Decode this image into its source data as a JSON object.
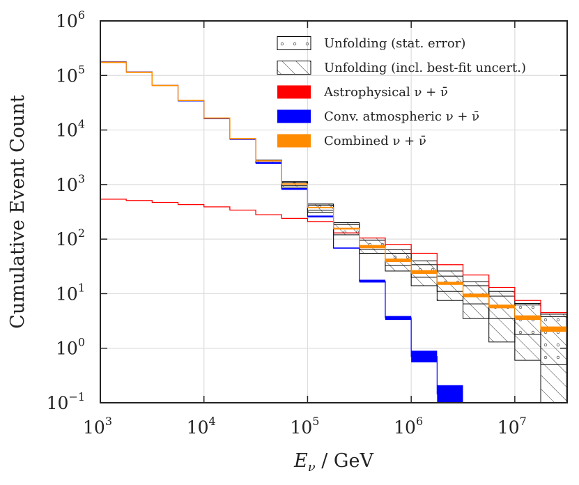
{
  "chart_data": {
    "type": "step",
    "xlabel": "E_ν / GeV",
    "ylabel": "Cumulative Event Count",
    "xscale": "log",
    "yscale": "log",
    "xlim": [
      1000,
      32000000
    ],
    "ylim": [
      0.1,
      1000000
    ],
    "grid": true,
    "x_ticks": [
      {
        "base": "10",
        "exp": "3",
        "value": 1000
      },
      {
        "base": "10",
        "exp": "4",
        "value": 10000
      },
      {
        "base": "10",
        "exp": "5",
        "value": 100000
      },
      {
        "base": "10",
        "exp": "6",
        "value": 1000000
      },
      {
        "base": "10",
        "exp": "7",
        "value": 10000000
      }
    ],
    "y_ticks": [
      {
        "base": "10",
        "exp": "−1",
        "value": 0.1
      },
      {
        "base": "10",
        "exp": "0",
        "value": 1
      },
      {
        "base": "10",
        "exp": "1",
        "value": 10
      },
      {
        "base": "10",
        "exp": "2",
        "value": 100
      },
      {
        "base": "10",
        "exp": "3",
        "value": 1000
      },
      {
        "base": "10",
        "exp": "4",
        "value": 10000
      },
      {
        "base": "10",
        "exp": "5",
        "value": 100000
      },
      {
        "base": "10",
        "exp": "6",
        "value": 1000000
      }
    ],
    "bin_edges": [
      1000,
      1778,
      3162,
      5623,
      10000,
      17783,
      31623,
      56234,
      100000,
      177828,
      316228,
      562341,
      1000000,
      1778279,
      3162278,
      5623413,
      10000000,
      17782794,
      31622777
    ],
    "legend": {
      "position": "top-right",
      "entries": [
        {
          "label": "Unfolding (stat. error)",
          "style": "dotted-box"
        },
        {
          "label": "Unfolding (incl. best-fit uncert.)",
          "style": "hatched-box"
        },
        {
          "label": "Astrophysical ν + ν̄",
          "style": "fill",
          "color": "#ff0000"
        },
        {
          "label": "Conv. atmospheric ν + ν̄",
          "style": "fill",
          "color": "#0000ff"
        },
        {
          "label": "Combined ν + ν̄",
          "style": "fill",
          "color": "#ff8c00"
        }
      ]
    },
    "series": [
      {
        "name": "Astrophysical ν + ν̄",
        "color": "#ff0000",
        "values": [
          540,
          510,
          470,
          430,
          390,
          340,
          280,
          240,
          210,
          130,
          105,
          80,
          55,
          34,
          22,
          13,
          7.5,
          4.5
        ]
      },
      {
        "name": "Conv. atmospheric ν + ν̄",
        "color": "#0000ff",
        "lower": [
          175000,
          115000,
          65000,
          34000,
          16000,
          6700,
          2400,
          800,
          250,
          67,
          16,
          3.3,
          0.55,
          0.1
        ],
        "upper": [
          182000,
          118000,
          67000,
          35000,
          16500,
          6900,
          2600,
          860,
          270,
          70,
          18,
          3.9,
          0.9,
          0.21
        ]
      },
      {
        "name": "Combined ν + ν̄",
        "color": "#ff8c00",
        "lower": [
          175500,
          115000,
          65500,
          34500,
          16500,
          6900,
          2650,
          1000,
          370,
          150,
          68,
          38,
          23,
          14.5,
          8.6,
          5.4,
          3.3,
          2.0
        ],
        "upper": [
          176500,
          116000,
          66500,
          35500,
          16800,
          7050,
          2780,
          1050,
          390,
          162,
          78,
          44,
          27,
          16.5,
          10,
          6.3,
          4.0,
          2.5
        ]
      },
      {
        "name": "Unfolding (stat. error)",
        "style": "dotted-box",
        "lower": [
          null,
          null,
          null,
          null,
          null,
          null,
          2550,
          950,
          340,
          130,
          65,
          33,
          20,
          11,
          6.5,
          3.5,
          1.8,
          0.5
        ],
        "upper": [
          null,
          null,
          null,
          null,
          null,
          null,
          2750,
          1100,
          420,
          185,
          95,
          55,
          34,
          21,
          14,
          9,
          6.2,
          3.8
        ]
      },
      {
        "name": "Unfolding (incl. best-fit uncert.)",
        "style": "hatched-box",
        "lower": [
          null,
          null,
          null,
          null,
          null,
          null,
          2500,
          900,
          310,
          120,
          55,
          26,
          14,
          7.5,
          3.5,
          1.3,
          0.6,
          0.1
        ],
        "upper": [
          null,
          null,
          null,
          null,
          null,
          null,
          2800,
          1130,
          440,
          200,
          105,
          64,
          40,
          26,
          16.5,
          11,
          6.6,
          4.2
        ]
      }
    ]
  }
}
